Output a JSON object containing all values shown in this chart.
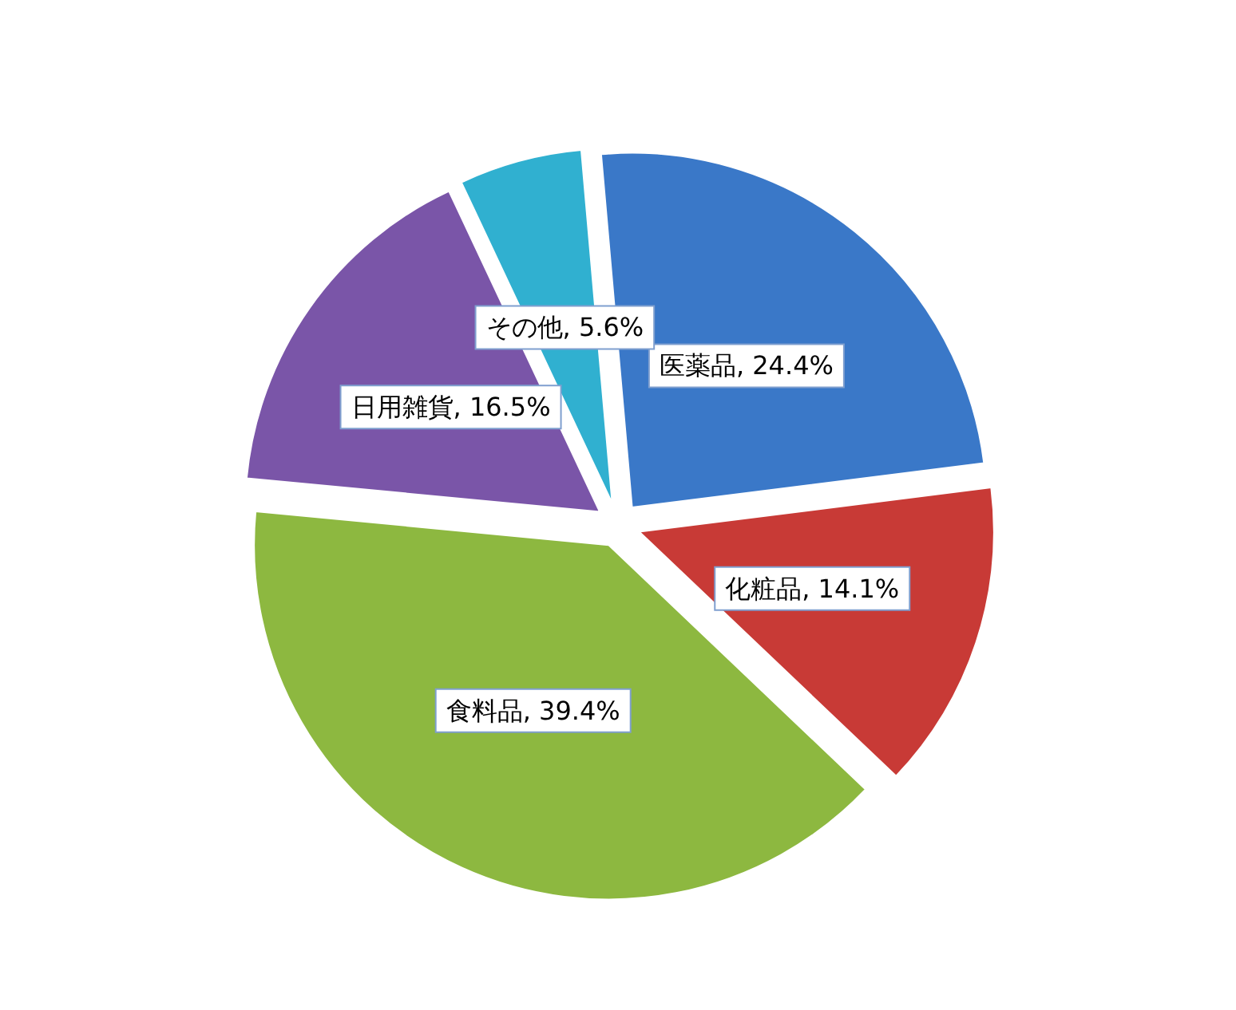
{
  "chart_data": {
    "type": "pie",
    "categories": [
      "医薬品",
      "化粧品",
      "食料品",
      "日用雑貨",
      "その他"
    ],
    "values": [
      24.4,
      14.1,
      39.4,
      16.5,
      5.6
    ],
    "value_labels": [
      "24.4%",
      "14.1%",
      "39.4%",
      "16.5%",
      "5.6%"
    ],
    "colors": [
      "#3a78c8",
      "#c83a36",
      "#8db840",
      "#7a55a8",
      "#30b0d0"
    ]
  }
}
